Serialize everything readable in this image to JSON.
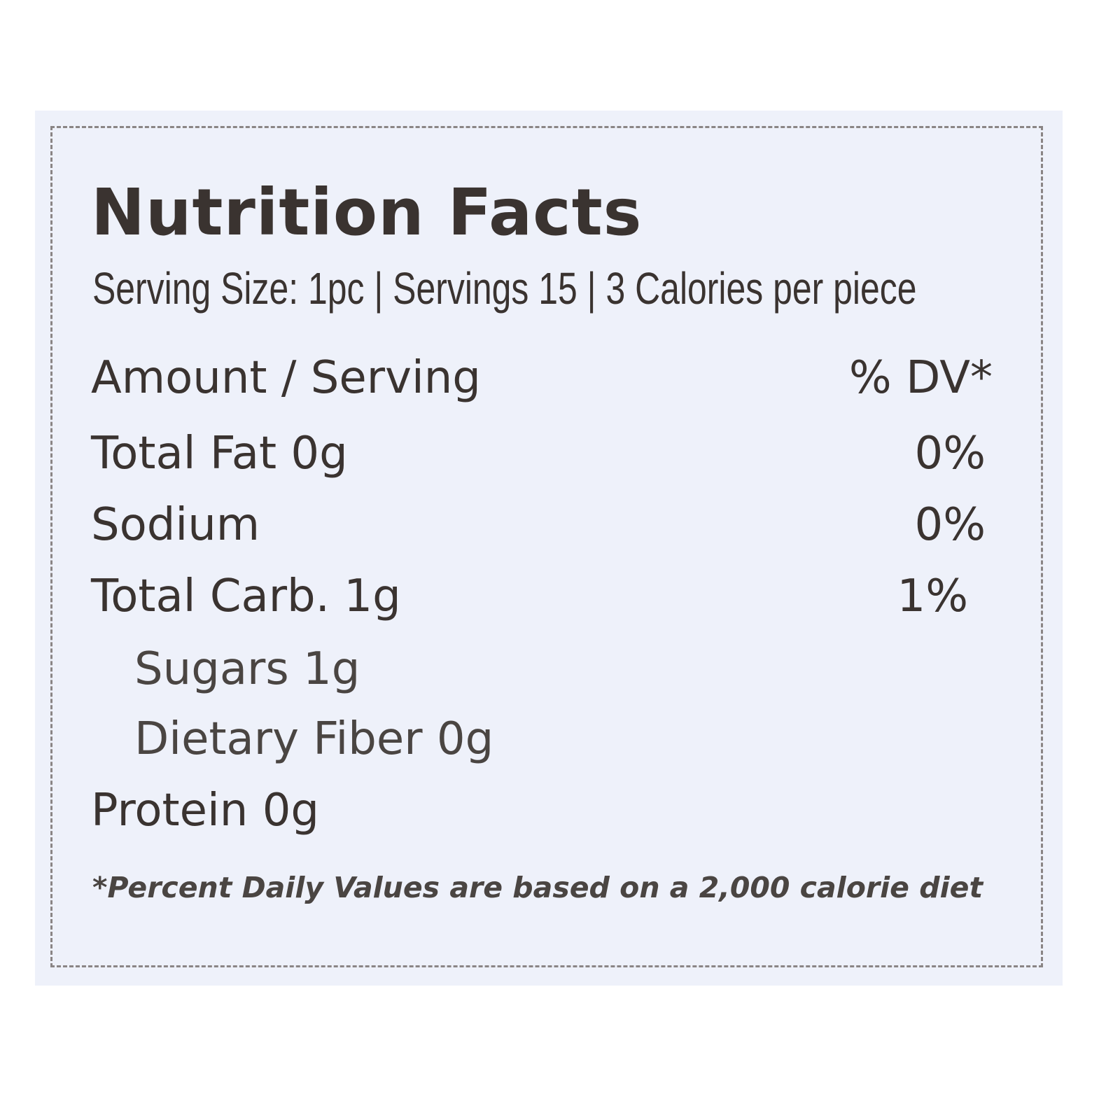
{
  "label": {
    "title": "Nutrition Facts",
    "serving_line": "Serving Size: 1pc | Servings 15 | 3 Calories per piece",
    "header_left": "Amount / Serving",
    "header_right": "% DV*",
    "rows": [
      {
        "label": "Total Fat 0g",
        "dv": "0%"
      },
      {
        "label": "Sodium",
        "dv": "0%"
      },
      {
        "label": "Total Carb. 1g",
        "dv": "1%"
      },
      {
        "label": "Sugars 1g",
        "dv": ""
      },
      {
        "label": "Dietary Fiber 0g",
        "dv": ""
      },
      {
        "label": "Protein 0g",
        "dv": ""
      }
    ],
    "footnote": "*Percent Daily Values are based on a 2,000 calorie diet"
  },
  "colors": {
    "panel": "#eef1fa",
    "text": "#3a3330"
  }
}
